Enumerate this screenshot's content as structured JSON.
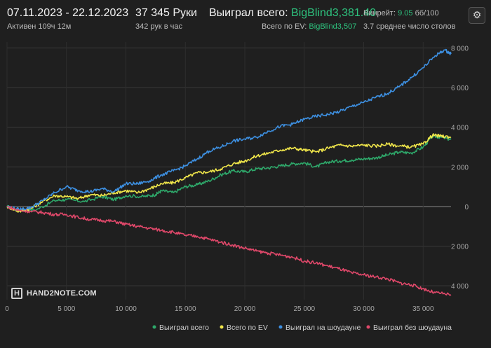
{
  "header": {
    "date_range": "07.11.2023 - 22.12.2023",
    "active_time": "Активен 109ч 12м",
    "hands": "37 345 Руки",
    "hands_per_hour": "342 рук в час",
    "won_total_label": "Выиграл всего:",
    "won_total_value": "BigBlind3,381.40",
    "won_ev_label": "Всего по EV:",
    "won_ev_value": "BigBlind3,507",
    "winrate_label": "Винрейт:",
    "winrate_value": "9.05",
    "winrate_unit": "бб/100",
    "avg_tables": "3.7 среднее число столов",
    "settings_icon": "gear-icon"
  },
  "logo": {
    "text": "HAND2NOTE.COM",
    "mark": "H"
  },
  "colors": {
    "background": "#1f1f1f",
    "won_total": "#2ea86a",
    "won_ev": "#f0e64a",
    "showdown": "#3d8fe0",
    "no_showdown": "#e0486a",
    "grid": "#3a3a3a",
    "zero_line": "#8a8a8a"
  },
  "chart_data": {
    "type": "line",
    "xlim": [
      0,
      37345
    ],
    "ylim": [
      -4700,
      8300
    ],
    "x_ticks": [
      0,
      5000,
      10000,
      15000,
      20000,
      25000,
      30000,
      35000
    ],
    "x_tick_labels": [
      "0",
      "5 000",
      "10 000",
      "15 000",
      "20 000",
      "25 000",
      "30 000",
      "35 000"
    ],
    "y_ticks": [
      8000,
      6000,
      4000,
      2000,
      0,
      -2000,
      -4000
    ],
    "y_tick_labels": [
      "8 000",
      "6 000",
      "4 000",
      "2 000",
      "0",
      "2 000",
      "4 000"
    ],
    "grid": true,
    "legend_position": "bottom-right",
    "series": [
      {
        "name": "Выиграл всего",
        "color": "#2ea86a",
        "points": [
          [
            0,
            0
          ],
          [
            1000,
            -200
          ],
          [
            2500,
            -150
          ],
          [
            4000,
            300
          ],
          [
            5000,
            350
          ],
          [
            6500,
            250
          ],
          [
            8000,
            500
          ],
          [
            9000,
            350
          ],
          [
            10000,
            550
          ],
          [
            11500,
            500
          ],
          [
            12500,
            600
          ],
          [
            13000,
            800
          ],
          [
            14000,
            700
          ],
          [
            15000,
            1000
          ],
          [
            16000,
            1100
          ],
          [
            17000,
            1300
          ],
          [
            18000,
            1600
          ],
          [
            19000,
            1800
          ],
          [
            20000,
            1750
          ],
          [
            21000,
            1900
          ],
          [
            22000,
            1950
          ],
          [
            23000,
            2050
          ],
          [
            24000,
            2150
          ],
          [
            25000,
            2200
          ],
          [
            26000,
            2000
          ],
          [
            27000,
            2250
          ],
          [
            28000,
            2300
          ],
          [
            29000,
            2350
          ],
          [
            30000,
            2400
          ],
          [
            31000,
            2450
          ],
          [
            32000,
            2600
          ],
          [
            33000,
            2750
          ],
          [
            34000,
            2700
          ],
          [
            35000,
            3000
          ],
          [
            35800,
            3550
          ],
          [
            36500,
            3500
          ],
          [
            37345,
            3381
          ]
        ]
      },
      {
        "name": "Всего по EV",
        "color": "#f0e64a",
        "points": [
          [
            0,
            0
          ],
          [
            1000,
            -250
          ],
          [
            2000,
            -100
          ],
          [
            3000,
            250
          ],
          [
            4000,
            550
          ],
          [
            5000,
            500
          ],
          [
            6000,
            400
          ],
          [
            7000,
            600
          ],
          [
            8000,
            550
          ],
          [
            9000,
            700
          ],
          [
            10000,
            800
          ],
          [
            11000,
            700
          ],
          [
            12000,
            900
          ],
          [
            13000,
            1150
          ],
          [
            14000,
            1200
          ],
          [
            15000,
            1450
          ],
          [
            16000,
            1700
          ],
          [
            17000,
            1750
          ],
          [
            18000,
            1900
          ],
          [
            19000,
            2150
          ],
          [
            20000,
            2300
          ],
          [
            21000,
            2550
          ],
          [
            22000,
            2700
          ],
          [
            23000,
            2850
          ],
          [
            24000,
            2950
          ],
          [
            25000,
            2850
          ],
          [
            26000,
            2750
          ],
          [
            27000,
            2950
          ],
          [
            28000,
            3100
          ],
          [
            29000,
            3050
          ],
          [
            30000,
            3100
          ],
          [
            31000,
            3050
          ],
          [
            32000,
            3150
          ],
          [
            33000,
            3050
          ],
          [
            34000,
            3000
          ],
          [
            35000,
            3150
          ],
          [
            35800,
            3600
          ],
          [
            36500,
            3550
          ],
          [
            37345,
            3507
          ]
        ]
      },
      {
        "name": "Выиграл на шоудауне",
        "color": "#3d8fe0",
        "points": [
          [
            0,
            0
          ],
          [
            1000,
            -150
          ],
          [
            2000,
            -50
          ],
          [
            3000,
            300
          ],
          [
            4000,
            700
          ],
          [
            5000,
            1000
          ],
          [
            6000,
            800
          ],
          [
            7000,
            750
          ],
          [
            8000,
            900
          ],
          [
            9000,
            750
          ],
          [
            10000,
            1150
          ],
          [
            11000,
            1150
          ],
          [
            12000,
            1300
          ],
          [
            13000,
            1600
          ],
          [
            14000,
            1800
          ],
          [
            15000,
            2050
          ],
          [
            16000,
            2400
          ],
          [
            17000,
            2800
          ],
          [
            18000,
            3000
          ],
          [
            19000,
            3300
          ],
          [
            20000,
            3400
          ],
          [
            21000,
            3500
          ],
          [
            22000,
            3800
          ],
          [
            23000,
            4050
          ],
          [
            24000,
            4150
          ],
          [
            25000,
            4400
          ],
          [
            26000,
            4550
          ],
          [
            27000,
            4650
          ],
          [
            28000,
            4800
          ],
          [
            29000,
            5050
          ],
          [
            30000,
            5250
          ],
          [
            31000,
            5500
          ],
          [
            32000,
            5700
          ],
          [
            33000,
            6050
          ],
          [
            34000,
            6500
          ],
          [
            35000,
            7000
          ],
          [
            36000,
            7600
          ],
          [
            36800,
            7900
          ],
          [
            37345,
            7700
          ]
        ]
      },
      {
        "name": "Выиграл без шоудауна",
        "color": "#e0486a",
        "points": [
          [
            0,
            0
          ],
          [
            1000,
            -200
          ],
          [
            2000,
            -250
          ],
          [
            3000,
            -300
          ],
          [
            4000,
            -400
          ],
          [
            5000,
            -400
          ],
          [
            6000,
            -550
          ],
          [
            7000,
            -650
          ],
          [
            8000,
            -700
          ],
          [
            9000,
            -750
          ],
          [
            10000,
            -900
          ],
          [
            11000,
            -1000
          ],
          [
            12000,
            -1100
          ],
          [
            13000,
            -1200
          ],
          [
            14000,
            -1300
          ],
          [
            15000,
            -1450
          ],
          [
            16000,
            -1500
          ],
          [
            17000,
            -1650
          ],
          [
            18000,
            -1800
          ],
          [
            19000,
            -1950
          ],
          [
            20000,
            -2100
          ],
          [
            21000,
            -2250
          ],
          [
            22000,
            -2350
          ],
          [
            23000,
            -2450
          ],
          [
            24000,
            -2550
          ],
          [
            25000,
            -2750
          ],
          [
            26000,
            -2850
          ],
          [
            27000,
            -3000
          ],
          [
            28000,
            -3150
          ],
          [
            29000,
            -3350
          ],
          [
            30000,
            -3450
          ],
          [
            31000,
            -3550
          ],
          [
            32000,
            -3650
          ],
          [
            33000,
            -3850
          ],
          [
            34000,
            -3950
          ],
          [
            35000,
            -4150
          ],
          [
            36000,
            -4350
          ],
          [
            37345,
            -4450
          ]
        ]
      }
    ]
  }
}
